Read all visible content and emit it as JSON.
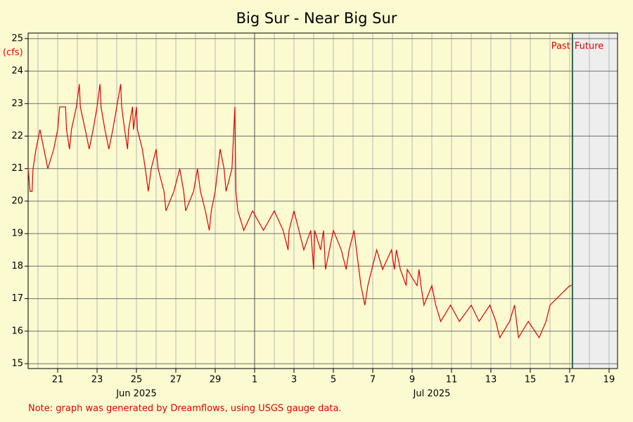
{
  "chart_data": {
    "type": "line",
    "title": "Big Sur - Near Big Sur",
    "y_label": "(cfs)",
    "note": "Note: graph was generated by Dreamflows, using USGS gauge data.",
    "past_label": "Past",
    "future_label": "Future",
    "now": 47.14,
    "month_start": 31,
    "x_month_labels": [
      {
        "value": 25,
        "label": "Jun 2025"
      },
      {
        "value": 40,
        "label": "Jul 2025"
      }
    ],
    "xlim": [
      19.5,
      49.43
    ],
    "xticks": [
      21,
      23,
      25,
      27,
      29,
      {
        "value": 31,
        "label": "1"
      },
      {
        "value": 33,
        "label": "3"
      },
      {
        "value": 35,
        "label": "5"
      },
      {
        "value": 37,
        "label": "7"
      },
      {
        "value": 39,
        "label": "9"
      },
      {
        "value": 41,
        "label": "11"
      },
      {
        "value": 43,
        "label": "13"
      },
      {
        "value": 45,
        "label": "15"
      },
      {
        "value": 47,
        "label": "17"
      },
      {
        "value": 49,
        "label": "19"
      }
    ],
    "ylim": [
      14.85,
      25.17
    ],
    "yticks": [
      15,
      16,
      17,
      18,
      19,
      20,
      21,
      22,
      23,
      24,
      25
    ],
    "grid": true,
    "series": [
      {
        "color": "#e00000",
        "x": [
          19.5,
          19.6,
          19.7,
          19.75,
          19.9,
          20.1,
          20.3,
          20.5,
          20.8,
          21.0,
          21.1,
          21.4,
          21.45,
          21.6,
          21.7,
          21.95,
          22.1,
          22.15,
          22.4,
          22.6,
          22.8,
          23.0,
          23.15,
          23.2,
          23.4,
          23.6,
          23.8,
          24.0,
          24.2,
          24.25,
          24.4,
          24.55,
          24.6,
          24.8,
          24.85,
          25.0,
          25.05,
          25.3,
          25.45,
          25.6,
          25.75,
          26.0,
          26.1,
          26.4,
          26.5,
          26.9,
          27.2,
          27.4,
          27.5,
          27.9,
          28.1,
          28.25,
          28.5,
          28.7,
          28.8,
          29.0,
          29.25,
          29.45,
          29.55,
          29.85,
          30.0,
          30.05,
          30.15,
          30.45,
          30.9,
          31.45,
          32.0,
          32.45,
          32.7,
          32.75,
          33.0,
          33.5,
          33.85,
          34.0,
          34.05,
          34.35,
          34.5,
          34.6,
          34.8,
          35.0,
          35.4,
          35.65,
          35.8,
          36.05,
          36.4,
          36.6,
          36.75,
          36.95,
          37.2,
          37.5,
          37.95,
          38.1,
          38.2,
          38.4,
          38.7,
          38.75,
          39.25,
          39.35,
          39.45,
          39.6,
          40.0,
          40.2,
          40.45,
          40.95,
          41.4,
          42.0,
          42.4,
          42.95,
          43.25,
          43.45,
          43.95,
          44.2,
          44.3,
          44.4,
          44.9,
          45.45,
          45.8,
          46.0,
          47.0,
          47.1
        ],
        "values": [
          21.0,
          20.3,
          20.3,
          21.0,
          21.6,
          22.2,
          21.6,
          21.0,
          21.6,
          22.2,
          22.9,
          22.9,
          22.2,
          21.6,
          22.2,
          22.9,
          23.6,
          22.9,
          22.2,
          21.6,
          22.2,
          22.9,
          23.6,
          22.9,
          22.2,
          21.6,
          22.2,
          22.9,
          23.6,
          22.9,
          22.2,
          21.6,
          22.2,
          22.9,
          22.2,
          22.9,
          22.2,
          21.6,
          21.0,
          20.3,
          21.0,
          21.6,
          21.0,
          20.3,
          19.7,
          20.3,
          21.0,
          20.3,
          19.7,
          20.3,
          21.0,
          20.3,
          19.7,
          19.1,
          19.7,
          20.3,
          21.6,
          21.0,
          20.3,
          21.0,
          22.9,
          20.3,
          19.7,
          19.1,
          19.7,
          19.1,
          19.7,
          19.1,
          18.5,
          19.1,
          19.7,
          18.5,
          19.1,
          17.9,
          19.1,
          18.5,
          19.1,
          17.9,
          18.5,
          19.1,
          18.5,
          17.9,
          18.5,
          19.1,
          17.4,
          16.8,
          17.4,
          17.9,
          18.5,
          17.9,
          18.5,
          17.9,
          18.5,
          17.9,
          17.4,
          17.9,
          17.4,
          17.9,
          17.4,
          16.8,
          17.4,
          16.8,
          16.3,
          16.8,
          16.3,
          16.8,
          16.3,
          16.8,
          16.3,
          15.8,
          16.3,
          16.8,
          16.3,
          15.8,
          16.3,
          15.8,
          16.3,
          16.8,
          17.4,
          17.4
        ]
      }
    ]
  }
}
